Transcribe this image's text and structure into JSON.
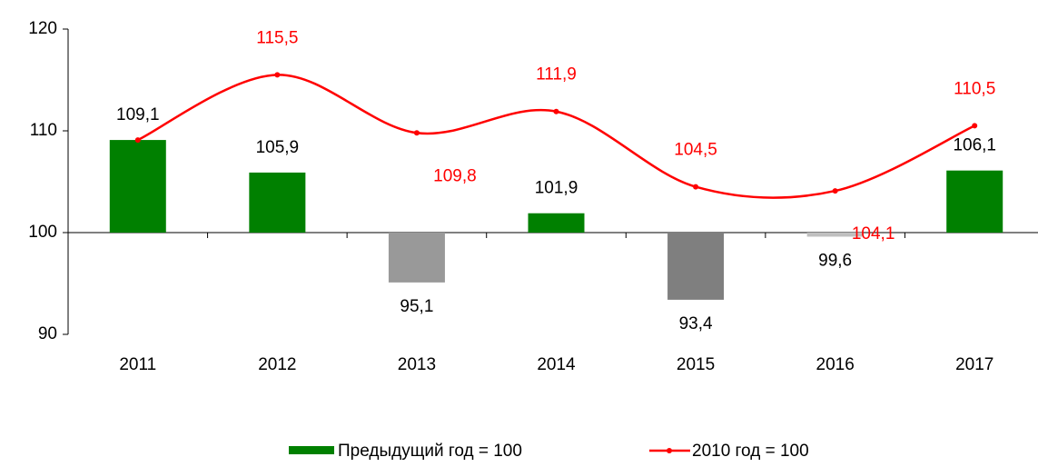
{
  "chart_data": {
    "type": "bar-line",
    "categories": [
      "2011",
      "2012",
      "2013",
      "2014",
      "2015",
      "2016",
      "2017"
    ],
    "ylim": [
      90,
      120
    ],
    "yticks": [
      90,
      100,
      110,
      120
    ],
    "baseline": 100,
    "series": [
      {
        "name": "Предыдущий год = 100",
        "type": "bar",
        "color": "#008000",
        "colors": [
          "#008000",
          "#008000",
          "#999999",
          "#008000",
          "#7f7f7f",
          "#bfbfbf",
          "#008000"
        ],
        "values": [
          109.1,
          105.9,
          95.1,
          101.9,
          93.4,
          99.6,
          106.1
        ],
        "value_labels": [
          "109,1",
          "105,9",
          "95,1",
          "101,9",
          "93,4",
          "99,6",
          "106,1"
        ]
      },
      {
        "name": "2010 год = 100",
        "type": "line",
        "color": "#ff0000",
        "values": [
          109.1,
          115.5,
          109.8,
          111.9,
          104.5,
          104.1,
          110.5
        ],
        "value_labels": [
          null,
          "115,5",
          "109,8",
          "111,9",
          "104,5",
          "104,1",
          "110,5"
        ]
      }
    ]
  }
}
